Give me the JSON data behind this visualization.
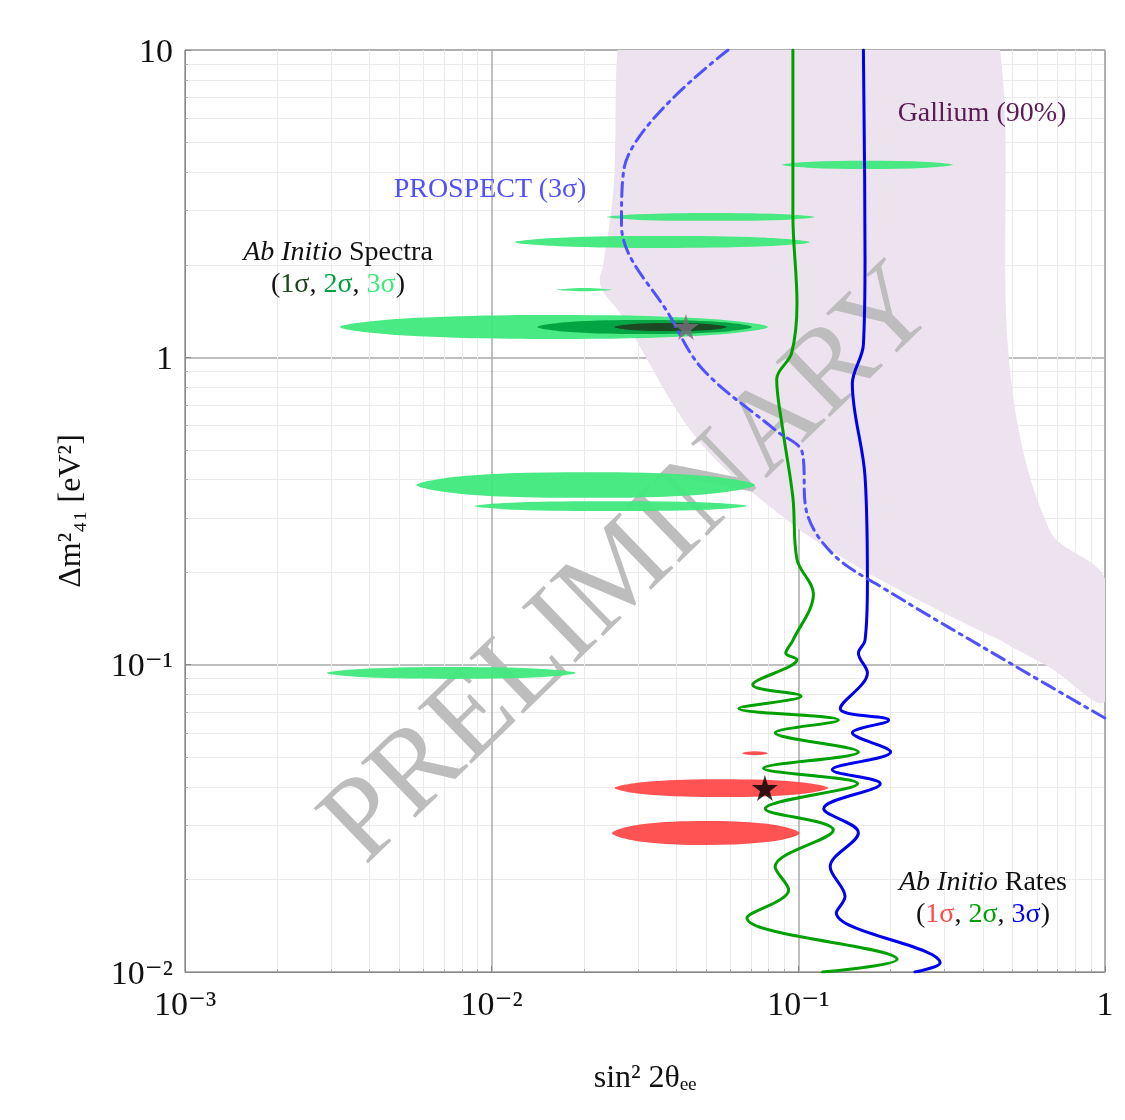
{
  "chart_data": {
    "type": "line",
    "xlabel": "sin² 2θₑₑ",
    "ylabel": "Δm²₄₁ [eV²]",
    "log": "xy",
    "grid": true,
    "xlim": [
      0.001,
      1
    ],
    "ylim": [
      0.01,
      10
    ],
    "xticks": [
      {
        "value": 0.001,
        "label": "10⁻³"
      },
      {
        "value": 0.01,
        "label": "10⁻²"
      },
      {
        "value": 0.1,
        "label": "10⁻¹"
      },
      1
    ],
    "yticks": [
      {
        "value": 0.01,
        "label": "10⁻²"
      },
      {
        "value": 0.1,
        "label": "10⁻¹"
      },
      1,
      10
    ],
    "annotations": [
      "Ab Initio Spectra",
      "(1σ, 2σ, 3σ)",
      "PROSPECT (3σ)",
      "Gallium (90%)",
      "Ab Initio Rates",
      "(1σ, 2σ, 3σ)",
      "PRELIMINARY"
    ],
    "series": [
      {
        "type": "area",
        "color": "#ece3ee",
        "x": [
          0.0225,
          0.023,
          0.025,
          0.0257,
          0.0269,
          0.047,
          0.09,
          0.163,
          0.366,
          0.455,
          0.49,
          0.66,
          1,
          1,
          0.66,
          0.49,
          0.455,
          0.366,
          0.163,
          0.09,
          0.047,
          0.0269,
          0.0257,
          0.025,
          0.023
        ],
        "values": [
          1.8,
          1.95,
          3.6,
          10,
          10,
          10,
          10,
          10,
          10,
          10,
          0.91,
          0.274,
          0.19,
          0.076,
          0.098,
          0.115,
          0.12,
          0.133,
          0.203,
          0.3,
          0.54,
          1.34,
          1.43,
          1.48,
          1.65
        ]
      },
      {
        "type": "area",
        "color": "#3fe87c",
        "x": [
          0.0885,
          0.107,
          0.168,
          0.263,
          0.319,
          0.263,
          0.168,
          0.107
        ],
        "values": [
          4.23,
          4.32,
          4.36,
          4.32,
          4.23,
          4.14,
          4.1,
          4.14
        ]
      },
      {
        "type": "area",
        "color": "#3fe87c",
        "x": [
          0.0238,
          0.0301,
          0.0519,
          0.0895,
          0.113,
          0.0895,
          0.0519,
          0.0301
        ],
        "values": [
          2.86,
          2.92,
          2.95,
          2.92,
          2.86,
          2.8,
          2.78,
          2.8
        ]
      },
      {
        "type": "area",
        "color": "#3fe87c",
        "x": [
          0.0119,
          0.0166,
          0.0361,
          0.0783,
          0.109,
          0.0783,
          0.0361,
          0.0166
        ],
        "values": [
          2.37,
          2.45,
          2.48,
          2.45,
          2.37,
          2.3,
          2.27,
          2.3
        ]
      },
      {
        "type": "area",
        "color": "#3fe87c",
        "x": [
          0.0162,
          0.0173,
          0.02,
          0.0232,
          0.0247,
          0.0232,
          0.02,
          0.0173
        ],
        "values": [
          1.66,
          1.67,
          1.68,
          1.67,
          1.66,
          1.65,
          1.64,
          1.65
        ]
      },
      {
        "type": "area",
        "color": "#3fe87c",
        "x": [
          0.0032,
          0.0052,
          0.016,
          0.0492,
          0.0796,
          0.0492,
          0.016,
          0.0052
        ],
        "values": [
          1.255,
          1.338,
          1.373,
          1.338,
          1.255,
          1.177,
          1.147,
          1.177
        ]
      },
      {
        "type": "area",
        "color": "#3fe87c",
        "x": [
          0.0057,
          0.0083,
          0.0203,
          0.0493,
          0.0722,
          0.0493,
          0.0203,
          0.0083
        ],
        "values": [
          0.384,
          0.412,
          0.423,
          0.412,
          0.384,
          0.358,
          0.349,
          0.358
        ]
      },
      {
        "type": "area",
        "color": "#3fe87c",
        "x": [
          0.0088,
          0.012,
          0.0245,
          0.05,
          0.0679,
          0.05,
          0.0245,
          0.012
        ],
        "values": [
          0.328,
          0.337,
          0.34,
          0.337,
          0.328,
          0.319,
          0.316,
          0.319
        ]
      },
      {
        "type": "area",
        "color": "#3fe87c",
        "x": [
          0.0029,
          0.00385,
          0.0074,
          0.0142,
          0.0188,
          0.0142,
          0.0074,
          0.00385
        ],
        "values": [
          0.094,
          0.097,
          0.0983,
          0.097,
          0.094,
          0.091,
          0.0899,
          0.091
        ]
      },
      {
        "type": "area",
        "color": "#00a040",
        "x": [
          0.0141,
          0.0179,
          0.0315,
          0.0555,
          0.0706,
          0.0555,
          0.0315,
          0.0179
        ],
        "values": [
          1.255,
          1.303,
          1.322,
          1.303,
          1.255,
          1.209,
          1.191,
          1.209
        ]
      },
      {
        "type": "area",
        "color": "#1e4420",
        "x": [
          0.0251,
          0.0284,
          0.0383,
          0.0515,
          0.0585,
          0.0515,
          0.0383,
          0.0284
        ],
        "values": [
          1.255,
          1.282,
          1.293,
          1.282,
          1.255,
          1.228,
          1.217,
          1.228
        ]
      },
      {
        "type": "area",
        "color": "#ff4a4a",
        "x": [
          0.0655,
          0.0675,
          0.0722,
          0.0773,
          0.0796,
          0.0773,
          0.0722,
          0.0675
        ],
        "values": [
          0.0515,
          0.052,
          0.0523,
          0.052,
          0.0515,
          0.051,
          0.0507,
          0.051
        ]
      },
      {
        "type": "area",
        "color": "#ff4a4a",
        "x": [
          0.0252,
          0.0321,
          0.0561,
          0.0982,
          0.125,
          0.0982,
          0.0561,
          0.0321
        ],
        "values": [
          0.0397,
          0.0416,
          0.0424,
          0.0416,
          0.0397,
          0.0378,
          0.0371,
          0.0378
        ]
      },
      {
        "type": "area",
        "color": "#ff4a4a",
        "x": [
          0.0247,
          0.0305,
          0.0499,
          0.0818,
          0.101,
          0.0818,
          0.0499,
          0.0305
        ],
        "values": [
          0.0283,
          0.0302,
          0.031,
          0.0302,
          0.0283,
          0.0266,
          0.0259,
          0.0266
        ]
      },
      {
        "type": "line",
        "color": "#00a000",
        "x": [
          0.096,
          0.096,
          0.099,
          0.095,
          0.085,
          0.089,
          0.096,
          0.099,
          0.112,
          0.096,
          0.091,
          0.099,
          0.071,
          0.102,
          0.064,
          0.135,
          0.084,
          0.157,
          0.077,
          0.156,
          0.078,
          0.13,
          0.084,
          0.093,
          0.068,
          0.21,
          0.12
        ],
        "values": [
          10,
          2.9,
          1.5,
          1.03,
          0.85,
          0.58,
          0.35,
          0.22,
          0.17,
          0.12,
          0.109,
          0.104,
          0.086,
          0.079,
          0.072,
          0.066,
          0.06,
          0.052,
          0.046,
          0.041,
          0.034,
          0.029,
          0.022,
          0.0185,
          0.015,
          0.011,
          0.01
        ]
      },
      {
        "type": "line",
        "color": "#0000ee",
        "x": [
          0.163,
          0.165,
          0.163,
          0.15,
          0.165,
          0.168,
          0.165,
          0.157,
          0.168,
          0.137,
          0.197,
          0.15,
          0.2,
          0.129,
          0.185,
          0.121,
          0.157,
          0.127,
          0.142,
          0.133,
          0.29,
          0.24
        ],
        "values": [
          10,
          2.1,
          1.1,
          0.82,
          0.41,
          0.185,
          0.12,
          0.109,
          0.094,
          0.072,
          0.066,
          0.06,
          0.052,
          0.0455,
          0.041,
          0.034,
          0.0284,
          0.022,
          0.0176,
          0.0156,
          0.0107,
          0.01
        ]
      },
      {
        "type": "line",
        "color": "#5050ff",
        "line_style": "dashed",
        "x": [
          0.059,
          0.027,
          0.0265,
          0.0385,
          0.049,
          0.085,
          0.103,
          0.106,
          0.129,
          0.19,
          0.5,
          1
        ],
        "values": [
          10,
          4.1,
          2.7,
          1.34,
          0.91,
          0.575,
          0.49,
          0.32,
          0.23,
          0.177,
          0.1,
          0.067
        ]
      },
      {
        "type": "scatter",
        "color": "#7a6e7e",
        "marker": "star",
        "x": [
          0.043
        ],
        "values": [
          1.255
        ]
      },
      {
        "type": "scatter",
        "color": "#000000",
        "marker": "star",
        "x": [
          0.0778
        ],
        "values": [
          0.0397
        ]
      }
    ]
  }
}
